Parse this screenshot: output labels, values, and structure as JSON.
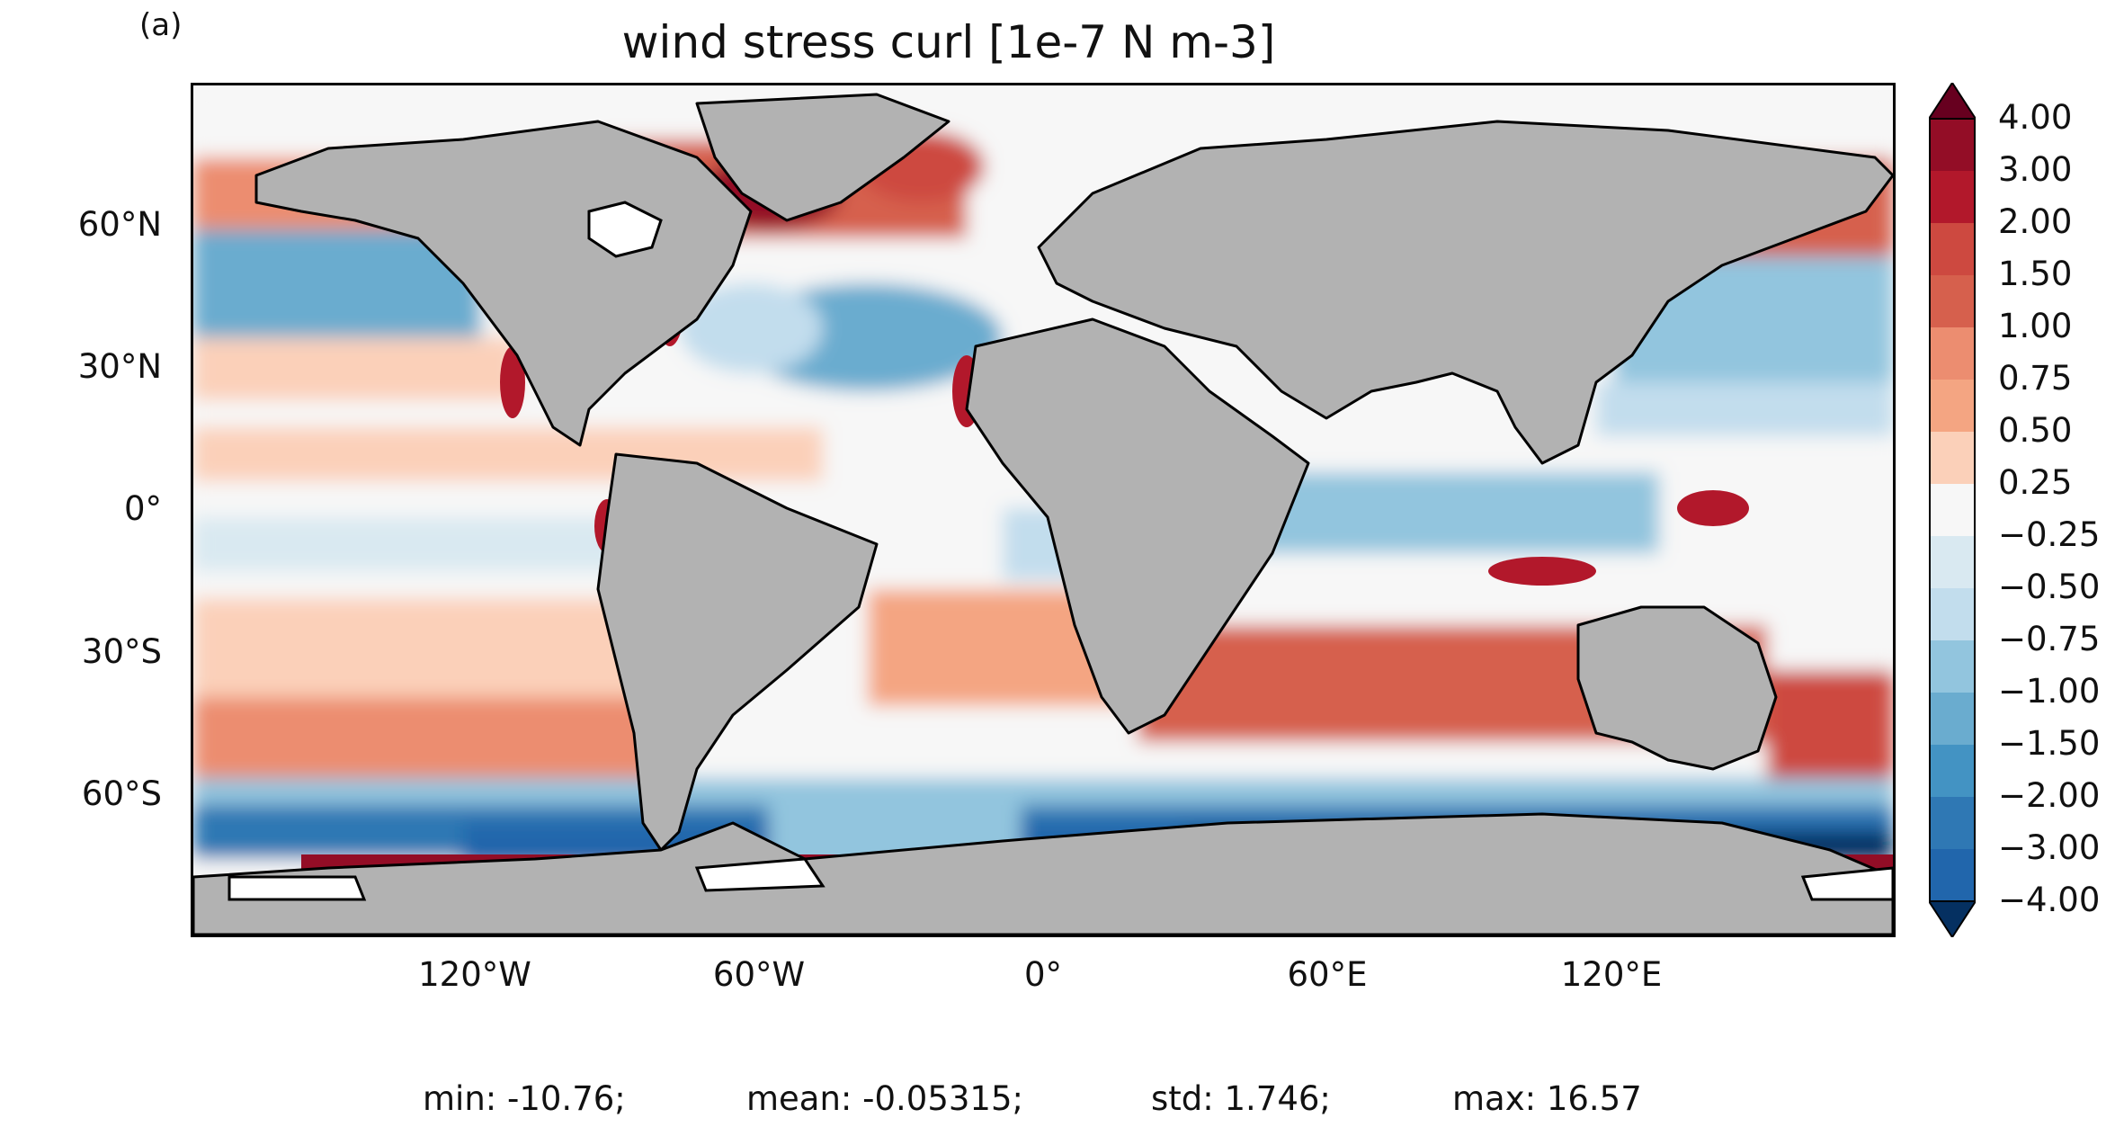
{
  "panel_label": "(a)",
  "title": "wind stress curl [1e-7 N m-3]",
  "map": {
    "projection": "PlateCarree",
    "extent": {
      "lon": [
        -180,
        180
      ],
      "lat": [
        -90,
        90
      ]
    },
    "land_color": "#b2b2b2",
    "coastline_color": "#000000",
    "sea_ice_color": "#ffffff"
  },
  "axes": {
    "y_ticks": [
      "60°N",
      "30°N",
      "0°",
      "30°S",
      "60°S"
    ],
    "x_ticks": [
      "120°W",
      "60°W",
      "0°",
      "60°E",
      "120°E"
    ]
  },
  "colorbar": {
    "colormap": "RdBu_r",
    "extend": "both",
    "levels": [
      "4.00",
      "3.00",
      "2.00",
      "1.50",
      "1.00",
      "0.75",
      "0.50",
      "0.25",
      "−0.25",
      "−0.50",
      "−0.75",
      "−1.00",
      "−1.50",
      "−2.00",
      "−3.00",
      "−4.00"
    ],
    "colors": [
      "#67001f",
      "#930d26",
      "#b2182b",
      "#cd4940",
      "#d6604d",
      "#ec8d70",
      "#f4a582",
      "#fbd0b9",
      "#f7f7f7",
      "#d9e9f1",
      "#c2dded",
      "#92c5de",
      "#6aaccf",
      "#4393c3",
      "#2f78b4",
      "#2166ac",
      "#053061"
    ]
  },
  "stats": {
    "min": "min: -10.76;",
    "mean": "mean: -0.05315;",
    "std": "std: 1.746;",
    "max": "max: 16.57"
  }
}
